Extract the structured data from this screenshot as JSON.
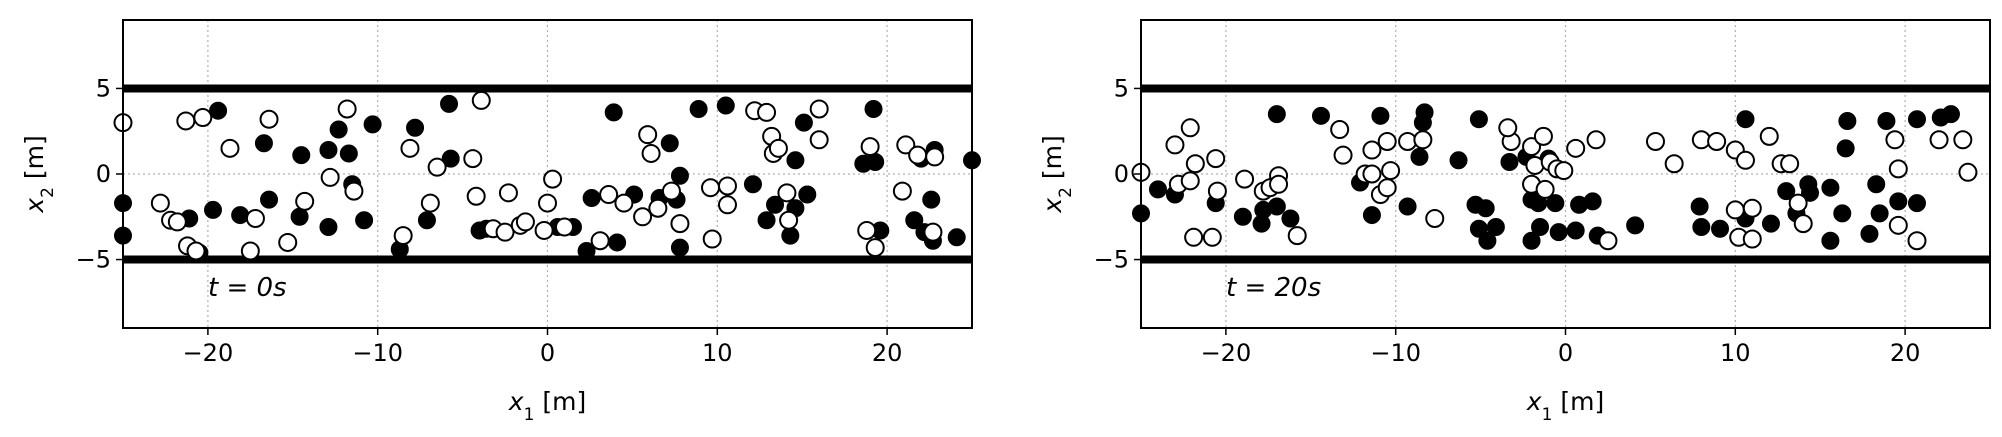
{
  "chart_data": [
    {
      "type": "scatter",
      "annotation": "t = 0s",
      "xlabel": "x_1 [m]",
      "ylabel": "x_2 [m]",
      "xlim": [
        -25,
        25
      ],
      "ylim": [
        -9,
        9
      ],
      "xticks": [
        -20,
        -10,
        0,
        10,
        20
      ],
      "xtick_labels": [
        "−20",
        "−10",
        "0",
        "10",
        "20"
      ],
      "yticks": [
        -5,
        0,
        5
      ],
      "ytick_labels": [
        "−5",
        "0",
        "5"
      ],
      "grid": "dotted",
      "walls": [
        5,
        -5
      ],
      "series": [
        {
          "marker": "filled-circle",
          "points": [
            [
              -25,
              -1.7
            ],
            [
              -25,
              -3.6
            ],
            [
              -21.1,
              -2.6
            ],
            [
              -20.5,
              -4.6
            ],
            [
              -19.4,
              3.7
            ],
            [
              -19.7,
              -2.1
            ],
            [
              -18.1,
              -2.4
            ],
            [
              -16.7,
              1.8
            ],
            [
              -16.4,
              -1.5
            ],
            [
              -14.5,
              1.1
            ],
            [
              -12.9,
              1.4
            ],
            [
              -12.3,
              2.6
            ],
            [
              -11.7,
              1.2
            ],
            [
              -11.5,
              -0.6
            ],
            [
              -10.3,
              2.9
            ],
            [
              -10.8,
              -2.7
            ],
            [
              -7.8,
              2.7
            ],
            [
              -7.1,
              -2.7
            ],
            [
              -8.7,
              -4.4
            ],
            [
              -5.8,
              4.1
            ],
            [
              -5.7,
              0.9
            ],
            [
              -12.9,
              -3.1
            ],
            [
              -14.6,
              -2.5
            ],
            [
              -4.0,
              -3.3
            ],
            [
              -3.6,
              -3.2
            ],
            [
              0.6,
              -3.1
            ],
            [
              1.5,
              -3.1
            ],
            [
              2.3,
              -4.5
            ],
            [
              3.9,
              3.6
            ],
            [
              2.6,
              -1.4
            ],
            [
              4.1,
              -4.0
            ],
            [
              5.1,
              -1.2
            ],
            [
              6.6,
              -1.4
            ],
            [
              7.2,
              1.8
            ],
            [
              7.8,
              -0.1
            ],
            [
              7.6,
              -1.5
            ],
            [
              7.8,
              -4.3
            ],
            [
              8.9,
              3.8
            ],
            [
              10.5,
              4.0
            ],
            [
              12.1,
              -0.6
            ],
            [
              12.9,
              -2.7
            ],
            [
              13.4,
              -1.8
            ],
            [
              14.6,
              0.8
            ],
            [
              14.3,
              -3.6
            ],
            [
              14.6,
              -2.0
            ],
            [
              15.3,
              -1.2
            ],
            [
              15.1,
              3.0
            ],
            [
              18.6,
              0.6
            ],
            [
              19.2,
              3.8
            ],
            [
              19.3,
              0.7
            ],
            [
              19.6,
              -3.3
            ],
            [
              21.6,
              -2.7
            ],
            [
              22.0,
              0.9
            ],
            [
              22.2,
              -3.4
            ],
            [
              22.8,
              1.4
            ],
            [
              22.6,
              -1.5
            ],
            [
              22.7,
              -3.9
            ],
            [
              24.1,
              -3.7
            ],
            [
              25,
              0.8
            ]
          ]
        },
        {
          "marker": "open-circle",
          "points": [
            [
              -25,
              3.0
            ],
            [
              -22.8,
              -1.7
            ],
            [
              -22.2,
              -2.7
            ],
            [
              -21.8,
              -2.8
            ],
            [
              -21.3,
              3.1
            ],
            [
              -21.2,
              -4.2
            ],
            [
              -20.7,
              -4.5
            ],
            [
              -20.3,
              3.3
            ],
            [
              -18.7,
              1.5
            ],
            [
              -17.5,
              -4.5
            ],
            [
              -17.2,
              -2.6
            ],
            [
              -16.4,
              3.2
            ],
            [
              -15.3,
              -4.0
            ],
            [
              -14.3,
              -1.6
            ],
            [
              -12.8,
              -0.2
            ],
            [
              -11.8,
              3.8
            ],
            [
              -11.4,
              -1.0
            ],
            [
              -8.5,
              -3.6
            ],
            [
              -8.1,
              1.5
            ],
            [
              -6.9,
              -1.7
            ],
            [
              -6.5,
              0.4
            ],
            [
              -4.4,
              0.9
            ],
            [
              -4.2,
              -1.3
            ],
            [
              -3.9,
              4.3
            ],
            [
              -3.2,
              -3.2
            ],
            [
              -2.5,
              -3.4
            ],
            [
              -2.3,
              -1.1
            ],
            [
              -1.6,
              -3.0
            ],
            [
              -1.3,
              -2.8
            ],
            [
              -0.2,
              -3.3
            ],
            [
              0.0,
              -1.7
            ],
            [
              0.3,
              -0.3
            ],
            [
              1.0,
              -3.1
            ],
            [
              3.1,
              -3.9
            ],
            [
              3.6,
              -1.2
            ],
            [
              4.5,
              -1.7
            ],
            [
              5.6,
              -2.5
            ],
            [
              5.9,
              2.3
            ],
            [
              6.1,
              1.2
            ],
            [
              6.5,
              -2.0
            ],
            [
              7.3,
              -1.0
            ],
            [
              7.8,
              -2.9
            ],
            [
              9.6,
              -0.8
            ],
            [
              9.7,
              -3.8
            ],
            [
              10.6,
              -0.7
            ],
            [
              10.6,
              -1.8
            ],
            [
              12.2,
              3.7
            ],
            [
              12.9,
              3.6
            ],
            [
              13.2,
              2.2
            ],
            [
              13.3,
              1.2
            ],
            [
              13.6,
              1.5
            ],
            [
              14.1,
              -1.1
            ],
            [
              14.2,
              -2.7
            ],
            [
              16.0,
              3.8
            ],
            [
              16.0,
              2.0
            ],
            [
              18.8,
              -3.3
            ],
            [
              19.0,
              1.6
            ],
            [
              19.3,
              -4.3
            ],
            [
              20.9,
              -1.0
            ],
            [
              21.1,
              1.7
            ],
            [
              21.8,
              1.1
            ],
            [
              22.8,
              1.0
            ],
            [
              22.7,
              -3.4
            ]
          ]
        }
      ]
    },
    {
      "type": "scatter",
      "annotation": "t = 20s",
      "xlabel": "x_1 [m]",
      "ylabel": "x_2 [m]",
      "xlim": [
        -25,
        25
      ],
      "ylim": [
        -9,
        9
      ],
      "xticks": [
        -20,
        -10,
        0,
        10,
        20
      ],
      "xtick_labels": [
        "−20",
        "−10",
        "0",
        "10",
        "20"
      ],
      "yticks": [
        -5,
        0,
        5
      ],
      "ytick_labels": [
        "−5",
        "0",
        "5"
      ],
      "grid": "dotted",
      "walls": [
        5,
        -5
      ],
      "series": [
        {
          "marker": "filled-circle",
          "points": [
            [
              -25,
              -2.3
            ],
            [
              -24.0,
              -0.9
            ],
            [
              -23.0,
              -1.2
            ],
            [
              -20.6,
              -1.7
            ],
            [
              -19.0,
              -2.5
            ],
            [
              -17.9,
              -2.9
            ],
            [
              -17.8,
              -2.1
            ],
            [
              -17.0,
              3.5
            ],
            [
              -17.0,
              -1.9
            ],
            [
              -16.2,
              -2.6
            ],
            [
              -14.4,
              3.4
            ],
            [
              -12.1,
              -0.5
            ],
            [
              -11.4,
              -2.4
            ],
            [
              -10.9,
              3.4
            ],
            [
              -9.3,
              -1.9
            ],
            [
              -8.6,
              1.0
            ],
            [
              -8.3,
              3.6
            ],
            [
              -8.4,
              3.0
            ],
            [
              -6.3,
              0.8
            ],
            [
              -5.3,
              -1.8
            ],
            [
              -5.1,
              3.2
            ],
            [
              -4.7,
              -2.0
            ],
            [
              -5.1,
              -3.2
            ],
            [
              -4.6,
              -3.9
            ],
            [
              -4.1,
              -3.1
            ],
            [
              -3.3,
              0.7
            ],
            [
              -2.3,
              1.0
            ],
            [
              -2.0,
              -3.9
            ],
            [
              -2.0,
              -1.5
            ],
            [
              -1.6,
              -1.7
            ],
            [
              -1.5,
              -3.1
            ],
            [
              -1.0,
              0.9
            ],
            [
              -0.6,
              -1.7
            ],
            [
              -0.4,
              -3.4
            ],
            [
              0.6,
              -3.3
            ],
            [
              0.8,
              -1.8
            ],
            [
              1.6,
              -1.6
            ],
            [
              1.9,
              -3.6
            ],
            [
              4.1,
              -3.0
            ],
            [
              7.9,
              -1.9
            ],
            [
              8.0,
              -3.1
            ],
            [
              9.1,
              -3.2
            ],
            [
              10.6,
              3.2
            ],
            [
              10.6,
              -2.6
            ],
            [
              12.1,
              -2.9
            ],
            [
              13.0,
              -1.0
            ],
            [
              13.6,
              -2.3
            ],
            [
              14.3,
              -0.6
            ],
            [
              14.4,
              -1.1
            ],
            [
              15.6,
              -0.8
            ],
            [
              15.6,
              -3.9
            ],
            [
              16.3,
              -2.3
            ],
            [
              16.6,
              3.1
            ],
            [
              16.5,
              1.5
            ],
            [
              17.9,
              -3.5
            ],
            [
              18.3,
              -0.6
            ],
            [
              18.5,
              -2.3
            ],
            [
              18.9,
              3.1
            ],
            [
              19.6,
              -1.6
            ],
            [
              20.7,
              3.2
            ],
            [
              20.7,
              -1.7
            ],
            [
              22.1,
              3.3
            ],
            [
              22.7,
              3.5
            ]
          ]
        },
        {
          "marker": "open-circle",
          "points": [
            [
              -25,
              0.1
            ],
            [
              -23.0,
              1.7
            ],
            [
              -22.8,
              -0.6
            ],
            [
              -22.1,
              2.7
            ],
            [
              -22.1,
              -0.4
            ],
            [
              -21.8,
              0.6
            ],
            [
              -21.9,
              -3.7
            ],
            [
              -20.8,
              -3.7
            ],
            [
              -20.5,
              -1.0
            ],
            [
              -20.6,
              0.9
            ],
            [
              -18.9,
              -0.3
            ],
            [
              -17.8,
              -1.0
            ],
            [
              -17.4,
              -0.8
            ],
            [
              -16.9,
              -0.1
            ],
            [
              -16.9,
              -0.6
            ],
            [
              -15.8,
              -3.6
            ],
            [
              -13.3,
              2.6
            ],
            [
              -13.1,
              1.1
            ],
            [
              -11.8,
              0.0
            ],
            [
              -11.4,
              1.4
            ],
            [
              -11.4,
              0.0
            ],
            [
              -10.9,
              -1.2
            ],
            [
              -10.5,
              -0.8
            ],
            [
              -10.5,
              1.9
            ],
            [
              -10.3,
              0.2
            ],
            [
              -9.3,
              1.9
            ],
            [
              -8.4,
              2.0
            ],
            [
              -7.7,
              -2.6
            ],
            [
              -3.2,
              1.9
            ],
            [
              -3.4,
              2.7
            ],
            [
              -2.0,
              -0.6
            ],
            [
              -2.0,
              1.6
            ],
            [
              -1.8,
              0.5
            ],
            [
              -1.2,
              -0.9
            ],
            [
              -1.3,
              2.2
            ],
            [
              -0.9,
              0.7
            ],
            [
              -0.5,
              0.3
            ],
            [
              -0.1,
              0.2
            ],
            [
              0.6,
              1.5
            ],
            [
              1.8,
              2.0
            ],
            [
              2.5,
              -3.9
            ],
            [
              5.3,
              1.9
            ],
            [
              6.4,
              0.6
            ],
            [
              8.0,
              2.0
            ],
            [
              8.9,
              1.9
            ],
            [
              10.0,
              -2.1
            ],
            [
              10.0,
              1.4
            ],
            [
              10.2,
              -3.7
            ],
            [
              10.6,
              0.8
            ],
            [
              11.0,
              -2.0
            ],
            [
              11.0,
              -3.8
            ],
            [
              12.0,
              2.2
            ],
            [
              12.7,
              0.6
            ],
            [
              13.2,
              0.6
            ],
            [
              13.7,
              -1.7
            ],
            [
              14.0,
              -2.9
            ],
            [
              19.6,
              0.3
            ],
            [
              19.6,
              -3.0
            ],
            [
              19.4,
              2.0
            ],
            [
              20.7,
              -3.9
            ],
            [
              22.0,
              2.0
            ],
            [
              23.4,
              2.0
            ],
            [
              23.7,
              0.1
            ]
          ]
        }
      ]
    }
  ]
}
